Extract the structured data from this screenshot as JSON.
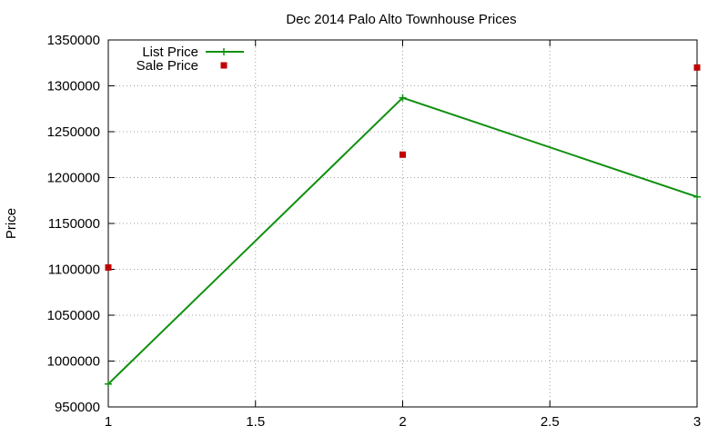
{
  "chart_data": {
    "type": "line",
    "title": "Dec 2014 Palo Alto Townhouse Prices",
    "xlabel": "",
    "ylabel": "Price",
    "xlim": [
      1,
      3
    ],
    "ylim": [
      950000,
      1350000
    ],
    "xticks": [
      "1",
      "1.5",
      "2",
      "2.5",
      "3"
    ],
    "yticks": [
      "950000",
      "1000000",
      "1050000",
      "1100000",
      "1150000",
      "1200000",
      "1250000",
      "1300000",
      "1350000"
    ],
    "grid": true,
    "legend_position": "top-left",
    "series": [
      {
        "name": "List Price",
        "style": "line-plus",
        "color": "#109010",
        "x": [
          1,
          2,
          3
        ],
        "y": [
          975000,
          1287000,
          1179000
        ]
      },
      {
        "name": "Sale Price",
        "style": "square-points",
        "color": "#c00000",
        "x": [
          1,
          2,
          3
        ],
        "y": [
          1102000,
          1225000,
          1320000
        ]
      }
    ]
  }
}
